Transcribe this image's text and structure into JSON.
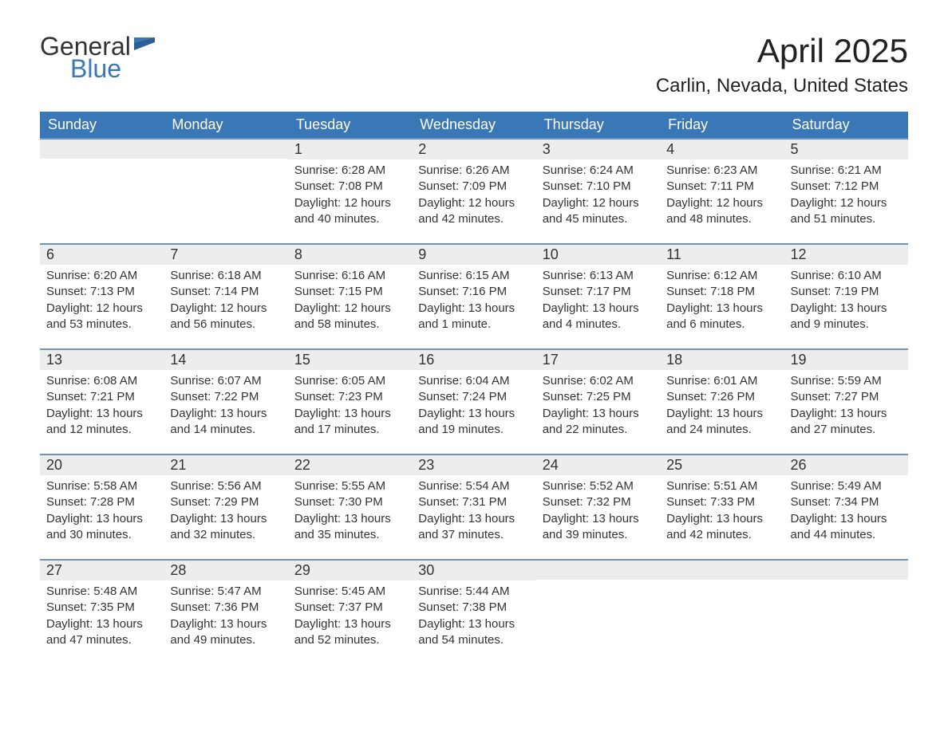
{
  "logo": {
    "part1": "General",
    "part2": "Blue"
  },
  "header": {
    "title": "April 2025",
    "location": "Carlin, Nevada, United States"
  },
  "colors": {
    "header_bg": "#3a77b7",
    "header_text": "#ffffff",
    "daybar_bg": "#ededed",
    "daybar_border": "#6a95c4",
    "body_text": "#333333",
    "page_bg": "#ffffff"
  },
  "weekdays": [
    "Sunday",
    "Monday",
    "Tuesday",
    "Wednesday",
    "Thursday",
    "Friday",
    "Saturday"
  ],
  "labels": {
    "sunrise": "Sunrise:",
    "sunset": "Sunset:",
    "daylight": "Daylight:"
  },
  "weeks": [
    [
      {
        "day": "",
        "sunrise": "",
        "sunset": "",
        "daylight": ""
      },
      {
        "day": "",
        "sunrise": "",
        "sunset": "",
        "daylight": ""
      },
      {
        "day": "1",
        "sunrise": "6:28 AM",
        "sunset": "7:08 PM",
        "daylight": "12 hours and 40 minutes."
      },
      {
        "day": "2",
        "sunrise": "6:26 AM",
        "sunset": "7:09 PM",
        "daylight": "12 hours and 42 minutes."
      },
      {
        "day": "3",
        "sunrise": "6:24 AM",
        "sunset": "7:10 PM",
        "daylight": "12 hours and 45 minutes."
      },
      {
        "day": "4",
        "sunrise": "6:23 AM",
        "sunset": "7:11 PM",
        "daylight": "12 hours and 48 minutes."
      },
      {
        "day": "5",
        "sunrise": "6:21 AM",
        "sunset": "7:12 PM",
        "daylight": "12 hours and 51 minutes."
      }
    ],
    [
      {
        "day": "6",
        "sunrise": "6:20 AM",
        "sunset": "7:13 PM",
        "daylight": "12 hours and 53 minutes."
      },
      {
        "day": "7",
        "sunrise": "6:18 AM",
        "sunset": "7:14 PM",
        "daylight": "12 hours and 56 minutes."
      },
      {
        "day": "8",
        "sunrise": "6:16 AM",
        "sunset": "7:15 PM",
        "daylight": "12 hours and 58 minutes."
      },
      {
        "day": "9",
        "sunrise": "6:15 AM",
        "sunset": "7:16 PM",
        "daylight": "13 hours and 1 minute."
      },
      {
        "day": "10",
        "sunrise": "6:13 AM",
        "sunset": "7:17 PM",
        "daylight": "13 hours and 4 minutes."
      },
      {
        "day": "11",
        "sunrise": "6:12 AM",
        "sunset": "7:18 PM",
        "daylight": "13 hours and 6 minutes."
      },
      {
        "day": "12",
        "sunrise": "6:10 AM",
        "sunset": "7:19 PM",
        "daylight": "13 hours and 9 minutes."
      }
    ],
    [
      {
        "day": "13",
        "sunrise": "6:08 AM",
        "sunset": "7:21 PM",
        "daylight": "13 hours and 12 minutes."
      },
      {
        "day": "14",
        "sunrise": "6:07 AM",
        "sunset": "7:22 PM",
        "daylight": "13 hours and 14 minutes."
      },
      {
        "day": "15",
        "sunrise": "6:05 AM",
        "sunset": "7:23 PM",
        "daylight": "13 hours and 17 minutes."
      },
      {
        "day": "16",
        "sunrise": "6:04 AM",
        "sunset": "7:24 PM",
        "daylight": "13 hours and 19 minutes."
      },
      {
        "day": "17",
        "sunrise": "6:02 AM",
        "sunset": "7:25 PM",
        "daylight": "13 hours and 22 minutes."
      },
      {
        "day": "18",
        "sunrise": "6:01 AM",
        "sunset": "7:26 PM",
        "daylight": "13 hours and 24 minutes."
      },
      {
        "day": "19",
        "sunrise": "5:59 AM",
        "sunset": "7:27 PM",
        "daylight": "13 hours and 27 minutes."
      }
    ],
    [
      {
        "day": "20",
        "sunrise": "5:58 AM",
        "sunset": "7:28 PM",
        "daylight": "13 hours and 30 minutes."
      },
      {
        "day": "21",
        "sunrise": "5:56 AM",
        "sunset": "7:29 PM",
        "daylight": "13 hours and 32 minutes."
      },
      {
        "day": "22",
        "sunrise": "5:55 AM",
        "sunset": "7:30 PM",
        "daylight": "13 hours and 35 minutes."
      },
      {
        "day": "23",
        "sunrise": "5:54 AM",
        "sunset": "7:31 PM",
        "daylight": "13 hours and 37 minutes."
      },
      {
        "day": "24",
        "sunrise": "5:52 AM",
        "sunset": "7:32 PM",
        "daylight": "13 hours and 39 minutes."
      },
      {
        "day": "25",
        "sunrise": "5:51 AM",
        "sunset": "7:33 PM",
        "daylight": "13 hours and 42 minutes."
      },
      {
        "day": "26",
        "sunrise": "5:49 AM",
        "sunset": "7:34 PM",
        "daylight": "13 hours and 44 minutes."
      }
    ],
    [
      {
        "day": "27",
        "sunrise": "5:48 AM",
        "sunset": "7:35 PM",
        "daylight": "13 hours and 47 minutes."
      },
      {
        "day": "28",
        "sunrise": "5:47 AM",
        "sunset": "7:36 PM",
        "daylight": "13 hours and 49 minutes."
      },
      {
        "day": "29",
        "sunrise": "5:45 AM",
        "sunset": "7:37 PM",
        "daylight": "13 hours and 52 minutes."
      },
      {
        "day": "30",
        "sunrise": "5:44 AM",
        "sunset": "7:38 PM",
        "daylight": "13 hours and 54 minutes."
      },
      {
        "day": "",
        "sunrise": "",
        "sunset": "",
        "daylight": ""
      },
      {
        "day": "",
        "sunrise": "",
        "sunset": "",
        "daylight": ""
      },
      {
        "day": "",
        "sunrise": "",
        "sunset": "",
        "daylight": ""
      }
    ]
  ]
}
